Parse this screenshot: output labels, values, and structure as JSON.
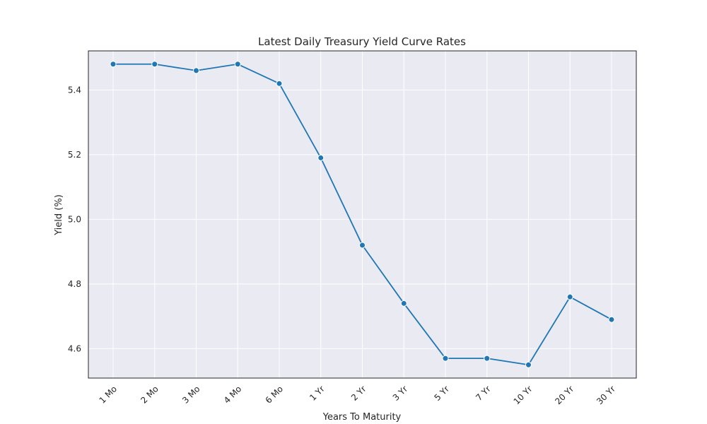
{
  "chart_data": {
    "type": "line",
    "title": "Latest Daily Treasury Yield Curve Rates",
    "xlabel": "Years To Maturity",
    "ylabel": "Yield (%)",
    "categories": [
      "1 Mo",
      "2 Mo",
      "3 Mo",
      "4 Mo",
      "6 Mo",
      "1 Yr",
      "2 Yr",
      "3 Yr",
      "5 Yr",
      "7 Yr",
      "10 Yr",
      "20 Yr",
      "30 Yr"
    ],
    "series": [
      {
        "values": [
          5.48,
          5.48,
          5.46,
          5.48,
          5.42,
          5.19,
          4.92,
          4.74,
          4.57,
          4.57,
          4.55,
          4.76,
          4.69
        ]
      }
    ],
    "ylim": [
      4.509,
      5.521
    ],
    "yticks": [
      4.6,
      4.8,
      5.0,
      5.2,
      5.4
    ],
    "ytick_labels": [
      "4.6",
      "4.8",
      "5.0",
      "5.2",
      "5.4"
    ],
    "grid": true,
    "colors": {
      "line": "#1f77b4",
      "plot_background": "#eaeaf2",
      "grid": "#ffffff",
      "frame": "#262626"
    }
  }
}
